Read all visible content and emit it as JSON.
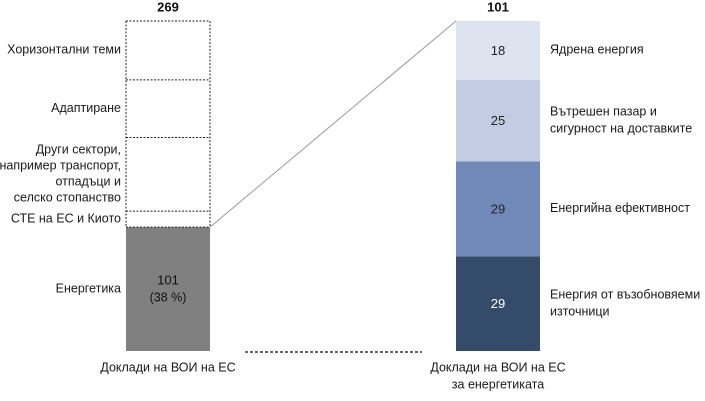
{
  "chart_data": {
    "type": "bar",
    "title": "",
    "xlabel": "",
    "ylabel": "",
    "left_bar": {
      "category": "Доклади на ВОИ на ЕС",
      "total_label": "269",
      "total": 269,
      "segments": [
        {
          "name": "Енергетика",
          "value": 101,
          "value_label": "101",
          "share_label": "(38 %)",
          "filled": true,
          "color": "#808080"
        },
        {
          "name": "СТЕ на ЕС и Киото",
          "value": 13,
          "filled": false
        },
        {
          "name": "Други сектори, например транспорт, отпадъци и селско стопанство",
          "name_lines": [
            "Други сектори,",
            "например транспорт,",
            "отпадъци и",
            "селско стопанство"
          ],
          "value": 60,
          "filled": false
        },
        {
          "name": "Адаптиране",
          "value": 47,
          "filled": false
        },
        {
          "name": "Хоризонтални теми",
          "value": 48,
          "filled": false
        }
      ]
    },
    "right_bar": {
      "category": "Доклади на ВОИ на ЕС за енергетиката",
      "category_lines": [
        "Доклади на ВОИ на ЕС",
        "за енергетиката"
      ],
      "total_label": "101",
      "total": 101,
      "segments": [
        {
          "name": "Енергия от възобновяеми източници",
          "name_lines": [
            "Енергия от възобновяеми",
            "източници"
          ],
          "value": 29,
          "value_label": "29",
          "color": "#344b6a"
        },
        {
          "name": "Енергийна ефективност",
          "name_lines": [
            "Енергийна ефективност"
          ],
          "value": 29,
          "value_label": "29",
          "color": "#7189b9"
        },
        {
          "name": "Вътрешен пазар и сигурност на доставките",
          "name_lines": [
            "Вътрешен пазар и",
            "сигурност на доставките"
          ],
          "value": 25,
          "value_label": "25",
          "color": "#c2cde3"
        },
        {
          "name": "Ядрена енергия",
          "name_lines": [
            "Ядрена енергия"
          ],
          "value": 18,
          "value_label": "18",
          "color": "#dde4f0"
        }
      ]
    }
  }
}
